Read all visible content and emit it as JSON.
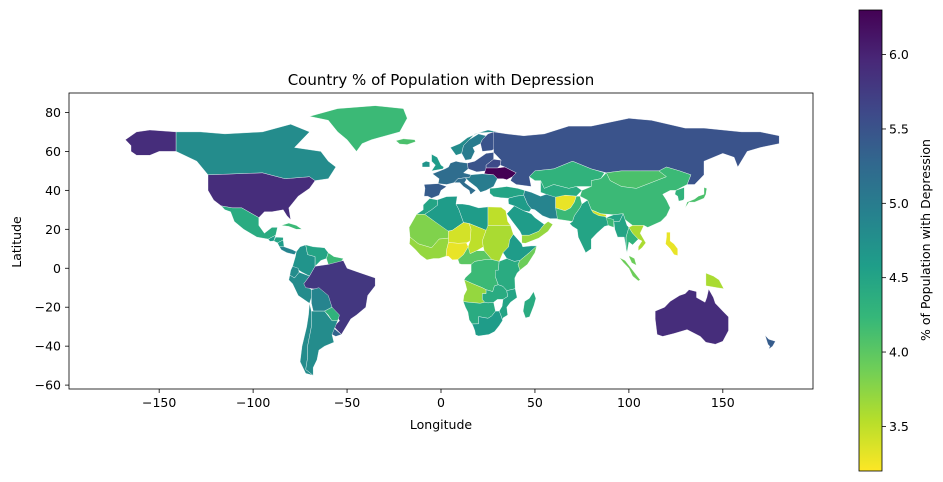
{
  "figure": {
    "title": "Country % of Population with Depression",
    "xlabel": "Longitude",
    "ylabel": "Latitude",
    "colorbar_label": "% of Population with Depression",
    "colormap": "viridis (reversed)"
  },
  "axes": {
    "xlim": [
      -198,
      198
    ],
    "ylim": [
      -62,
      90
    ],
    "xticks": [
      {
        "value": -150,
        "label": "−150"
      },
      {
        "value": -100,
        "label": "−100"
      },
      {
        "value": -50,
        "label": "−50"
      },
      {
        "value": 0,
        "label": "0"
      },
      {
        "value": 50,
        "label": "50"
      },
      {
        "value": 100,
        "label": "100"
      },
      {
        "value": 150,
        "label": "150"
      }
    ],
    "yticks": [
      {
        "value": 80,
        "label": "80"
      },
      {
        "value": 60,
        "label": "60"
      },
      {
        "value": 40,
        "label": "40"
      },
      {
        "value": 20,
        "label": "20"
      },
      {
        "value": 0,
        "label": "0"
      },
      {
        "value": -20,
        "label": "−20"
      },
      {
        "value": -40,
        "label": "−40"
      },
      {
        "value": -60,
        "label": "−60"
      }
    ]
  },
  "colorbar": {
    "range": [
      3.2,
      6.3
    ],
    "ticks": [
      {
        "value": 3.5,
        "label": "3.5"
      },
      {
        "value": 4.0,
        "label": "4.0"
      },
      {
        "value": 4.5,
        "label": "4.5"
      },
      {
        "value": 5.0,
        "label": "5.0"
      },
      {
        "value": 5.5,
        "label": "5.5"
      },
      {
        "value": 6.0,
        "label": "6.0"
      }
    ],
    "stops": [
      "#fde725",
      "#b5de2b",
      "#6ece58",
      "#35b779",
      "#1f9e89",
      "#26828e",
      "#31688e",
      "#3e4989",
      "#482878",
      "#440154"
    ]
  },
  "chart_data": {
    "type": "choropleth",
    "title": "Country % of Population with Depression",
    "xlabel": "Longitude",
    "ylabel": "Latitude",
    "value_range": [
      3.2,
      6.3
    ],
    "regions": [
      {
        "name": "United States",
        "value": 5.9
      },
      {
        "name": "Alaska (United States)",
        "value": 5.9
      },
      {
        "name": "Canada",
        "value": 4.8
      },
      {
        "name": "Greenland",
        "value": 4.2
      },
      {
        "name": "Mexico",
        "value": 4.4
      },
      {
        "name": "Cuba",
        "value": 4.2
      },
      {
        "name": "Guatemala",
        "value": 4.6
      },
      {
        "name": "Honduras",
        "value": 4.5
      },
      {
        "name": "Nicaragua",
        "value": 4.6
      },
      {
        "name": "Costa Rica / Panama",
        "value": 4.9
      },
      {
        "name": "Colombia",
        "value": 4.7
      },
      {
        "name": "Venezuela",
        "value": 4.5
      },
      {
        "name": "Guyana / Suriname",
        "value": 4.2
      },
      {
        "name": "Ecuador",
        "value": 4.8
      },
      {
        "name": "Peru",
        "value": 4.8
      },
      {
        "name": "Brazil",
        "value": 5.8
      },
      {
        "name": "Bolivia",
        "value": 4.9
      },
      {
        "name": "Paraguay",
        "value": 4.3
      },
      {
        "name": "Uruguay",
        "value": 5.3
      },
      {
        "name": "Chile",
        "value": 4.8
      },
      {
        "name": "Argentina",
        "value": 4.8
      },
      {
        "name": "Iceland",
        "value": 4.1
      },
      {
        "name": "United Kingdom",
        "value": 4.6
      },
      {
        "name": "Ireland",
        "value": 4.7
      },
      {
        "name": "Norway",
        "value": 4.8
      },
      {
        "name": "Sweden",
        "value": 5.0
      },
      {
        "name": "Finland",
        "value": 5.5
      },
      {
        "name": "Western Europe",
        "value": 5.2
      },
      {
        "name": "Spain / Portugal",
        "value": 5.4
      },
      {
        "name": "Italy",
        "value": 5.2
      },
      {
        "name": "Poland / Baltic",
        "value": 5.5
      },
      {
        "name": "Belarus",
        "value": 5.6
      },
      {
        "name": "Ukraine",
        "value": 6.3
      },
      {
        "name": "Balkans",
        "value": 5.0
      },
      {
        "name": "Turkey",
        "value": 4.5
      },
      {
        "name": "Russia",
        "value": 5.5
      },
      {
        "name": "Kazakhstan",
        "value": 4.3
      },
      {
        "name": "Central Asia",
        "value": 4.4
      },
      {
        "name": "Mongolia",
        "value": 4.1
      },
      {
        "name": "China",
        "value": 4.2
      },
      {
        "name": "Japan",
        "value": 4.1
      },
      {
        "name": "Korea",
        "value": 4.3
      },
      {
        "name": "Iran",
        "value": 4.9
      },
      {
        "name": "Iraq / Syria",
        "value": 4.6
      },
      {
        "name": "Saudi Arabia",
        "value": 4.6
      },
      {
        "name": "Yemen / Oman",
        "value": 3.7
      },
      {
        "name": "Afghanistan",
        "value": 3.3
      },
      {
        "name": "Pakistan",
        "value": 4.2
      },
      {
        "name": "India",
        "value": 4.5
      },
      {
        "name": "Nepal",
        "value": 3.4
      },
      {
        "name": "Bangladesh",
        "value": 4.2
      },
      {
        "name": "Myanmar",
        "value": 4.5
      },
      {
        "name": "Thailand",
        "value": 4.3
      },
      {
        "name": "Vietnam / Laos",
        "value": 3.6
      },
      {
        "name": "Malaysia",
        "value": 3.9
      },
      {
        "name": "Indonesia",
        "value": 3.9
      },
      {
        "name": "Philippines",
        "value": 3.3
      },
      {
        "name": "Papua New Guinea",
        "value": 3.6
      },
      {
        "name": "Australia",
        "value": 5.9
      },
      {
        "name": "New Zealand",
        "value": 5.4
      },
      {
        "name": "Morocco",
        "value": 4.5
      },
      {
        "name": "Algeria",
        "value": 4.6
      },
      {
        "name": "Libya",
        "value": 4.6
      },
      {
        "name": "Egypt",
        "value": 3.5
      },
      {
        "name": "Mauritania / Mali",
        "value": 3.8
      },
      {
        "name": "Niger",
        "value": 3.4
      },
      {
        "name": "Chad",
        "value": 3.5
      },
      {
        "name": "Sudan",
        "value": 3.6
      },
      {
        "name": "West Africa coast",
        "value": 3.7
      },
      {
        "name": "Nigeria",
        "value": 3.3
      },
      {
        "name": "Ethiopia",
        "value": 4.6
      },
      {
        "name": "Somalia",
        "value": 3.9
      },
      {
        "name": "Central Africa",
        "value": 4.0
      },
      {
        "name": "DR Congo",
        "value": 4.2
      },
      {
        "name": "Kenya / Tanzania",
        "value": 4.4
      },
      {
        "name": "Angola",
        "value": 3.7
      },
      {
        "name": "Zambia / Malawi",
        "value": 4.4
      },
      {
        "name": "Mozambique",
        "value": 4.5
      },
      {
        "name": "Namibia / Botswana",
        "value": 4.4
      },
      {
        "name": "South Africa",
        "value": 4.6
      },
      {
        "name": "Madagascar",
        "value": 4.4
      }
    ]
  }
}
